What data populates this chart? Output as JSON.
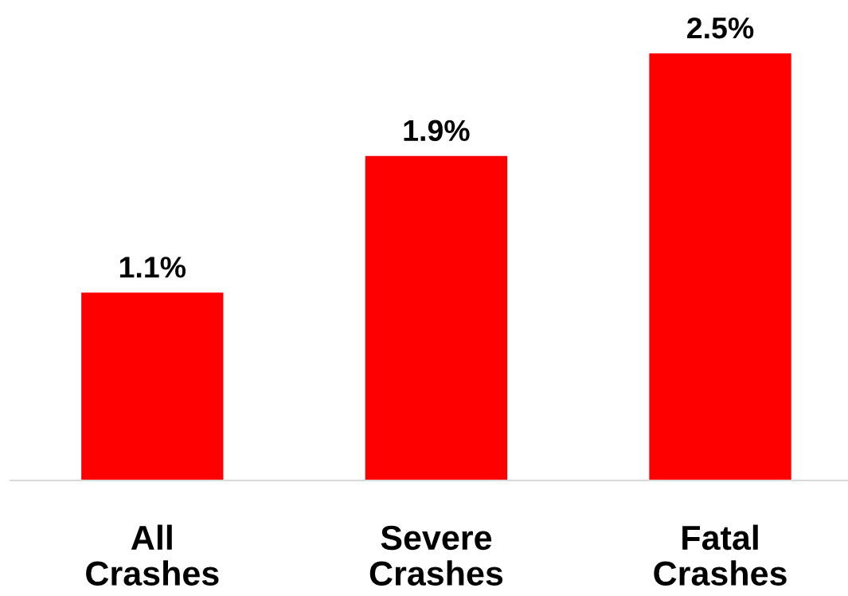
{
  "chart_data": {
    "type": "bar",
    "categories": [
      "All\nCrashes",
      "Severe\nCrashes",
      "Fatal\nCrashes"
    ],
    "values": [
      1.1,
      1.9,
      2.5
    ],
    "value_labels": [
      "1.1%",
      "1.9%",
      "2.5%"
    ],
    "color": "#ff0000"
  }
}
